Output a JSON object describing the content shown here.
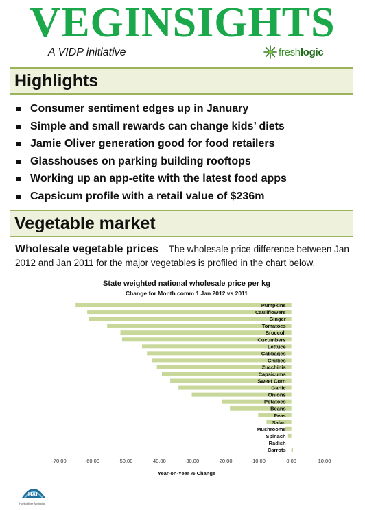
{
  "masthead": {
    "title": "VEGINSIGHTS",
    "tagline": "A VIDP initiative",
    "partner_fresh": "fresh",
    "partner_logic": "logic",
    "brand_color": "#1aa84a"
  },
  "highlights": {
    "heading": "Highlights",
    "items": [
      "Consumer sentiment edges up in January",
      "Simple and small rewards can change kids’ diets",
      "Jamie Oliver generation good for food retailers",
      "Glasshouses on parking building rooftops",
      "Working up an app-etite with the latest food apps",
      "Capsicum profile with a retail value of $236m"
    ]
  },
  "vegetable_market": {
    "heading": "Vegetable market",
    "lead_head": "Wholesale vegetable prices",
    "lead_text": " – The wholesale price difference between Jan 2012 and Jan 2011 for the major vegetables is profiled in the chart below."
  },
  "chart_data": {
    "type": "bar",
    "orientation": "horizontal",
    "title": "State weighted national wholesale price per kg",
    "subtitle": "Change for Month comm 1 Jan 2012 vs 2011",
    "xlabel": "Year-on-Year % Change",
    "ylabel": "",
    "xlim": [
      -70,
      10
    ],
    "xticks": [
      "-70.00",
      "-60.00",
      "-50.00",
      "-40.00",
      "-30.00",
      "-20.00",
      "-10.00",
      "0.00",
      "10.00"
    ],
    "categories": [
      "Pumpkins",
      "Cauliflowers",
      "Ginger",
      "Tomatoes",
      "Broccoli",
      "Cucumbers",
      "Lettuce",
      "Cabbages",
      "Chillies",
      "Zucchinis",
      "Capsicums",
      "Sweet Corn",
      "Garlic",
      "Onions",
      "Potatoes",
      "Beans",
      "Peas",
      "Salad",
      "Mushrooms",
      "Spinach",
      "Radish",
      "Carrots"
    ],
    "values": [
      -65,
      -61.5,
      -61,
      -55.5,
      -51.5,
      -51,
      -45,
      -43.5,
      -42,
      -40.5,
      -39,
      -36.5,
      -34,
      -30,
      -21,
      -18.5,
      -10,
      -7.5,
      -2,
      -1,
      0,
      0.5
    ],
    "bar_color": "#c8d89a",
    "grid": false,
    "legend": "none"
  },
  "footer": {
    "logo_text": "HAL",
    "logo_sub": "Horticulture Australia"
  }
}
